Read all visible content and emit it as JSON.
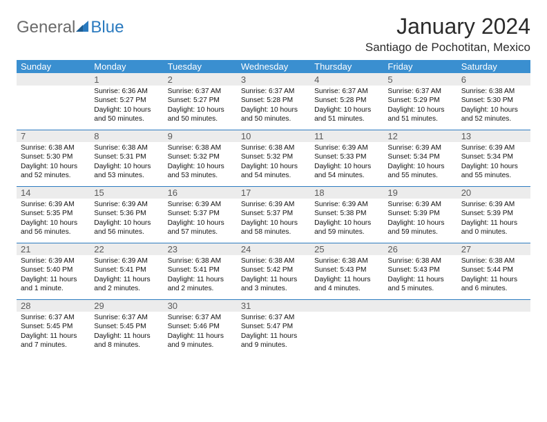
{
  "logo": {
    "general": "General",
    "blue": "Blue"
  },
  "header": {
    "month_title": "January 2024",
    "location": "Santiago de Pochotitan, Mexico"
  },
  "colors": {
    "header_bg": "#3a8fd0",
    "header_fg": "#ffffff",
    "numrow_bg": "#ececec",
    "numrow_fg": "#5a5a5a",
    "row_border": "#2a7abf",
    "logo_gray": "#6a6a6a",
    "logo_blue": "#2a7abf"
  },
  "calendar": {
    "day_names": [
      "Sunday",
      "Monday",
      "Tuesday",
      "Wednesday",
      "Thursday",
      "Friday",
      "Saturday"
    ],
    "weeks": [
      [
        null,
        {
          "n": "1",
          "sr": "6:36 AM",
          "ss": "5:27 PM",
          "dl": "10 hours and 50 minutes."
        },
        {
          "n": "2",
          "sr": "6:37 AM",
          "ss": "5:27 PM",
          "dl": "10 hours and 50 minutes."
        },
        {
          "n": "3",
          "sr": "6:37 AM",
          "ss": "5:28 PM",
          "dl": "10 hours and 50 minutes."
        },
        {
          "n": "4",
          "sr": "6:37 AM",
          "ss": "5:28 PM",
          "dl": "10 hours and 51 minutes."
        },
        {
          "n": "5",
          "sr": "6:37 AM",
          "ss": "5:29 PM",
          "dl": "10 hours and 51 minutes."
        },
        {
          "n": "6",
          "sr": "6:38 AM",
          "ss": "5:30 PM",
          "dl": "10 hours and 52 minutes."
        }
      ],
      [
        {
          "n": "7",
          "sr": "6:38 AM",
          "ss": "5:30 PM",
          "dl": "10 hours and 52 minutes."
        },
        {
          "n": "8",
          "sr": "6:38 AM",
          "ss": "5:31 PM",
          "dl": "10 hours and 53 minutes."
        },
        {
          "n": "9",
          "sr": "6:38 AM",
          "ss": "5:32 PM",
          "dl": "10 hours and 53 minutes."
        },
        {
          "n": "10",
          "sr": "6:38 AM",
          "ss": "5:32 PM",
          "dl": "10 hours and 54 minutes."
        },
        {
          "n": "11",
          "sr": "6:39 AM",
          "ss": "5:33 PM",
          "dl": "10 hours and 54 minutes."
        },
        {
          "n": "12",
          "sr": "6:39 AM",
          "ss": "5:34 PM",
          "dl": "10 hours and 55 minutes."
        },
        {
          "n": "13",
          "sr": "6:39 AM",
          "ss": "5:34 PM",
          "dl": "10 hours and 55 minutes."
        }
      ],
      [
        {
          "n": "14",
          "sr": "6:39 AM",
          "ss": "5:35 PM",
          "dl": "10 hours and 56 minutes."
        },
        {
          "n": "15",
          "sr": "6:39 AM",
          "ss": "5:36 PM",
          "dl": "10 hours and 56 minutes."
        },
        {
          "n": "16",
          "sr": "6:39 AM",
          "ss": "5:37 PM",
          "dl": "10 hours and 57 minutes."
        },
        {
          "n": "17",
          "sr": "6:39 AM",
          "ss": "5:37 PM",
          "dl": "10 hours and 58 minutes."
        },
        {
          "n": "18",
          "sr": "6:39 AM",
          "ss": "5:38 PM",
          "dl": "10 hours and 59 minutes."
        },
        {
          "n": "19",
          "sr": "6:39 AM",
          "ss": "5:39 PM",
          "dl": "10 hours and 59 minutes."
        },
        {
          "n": "20",
          "sr": "6:39 AM",
          "ss": "5:39 PM",
          "dl": "11 hours and 0 minutes."
        }
      ],
      [
        {
          "n": "21",
          "sr": "6:39 AM",
          "ss": "5:40 PM",
          "dl": "11 hours and 1 minute."
        },
        {
          "n": "22",
          "sr": "6:39 AM",
          "ss": "5:41 PM",
          "dl": "11 hours and 2 minutes."
        },
        {
          "n": "23",
          "sr": "6:38 AM",
          "ss": "5:41 PM",
          "dl": "11 hours and 2 minutes."
        },
        {
          "n": "24",
          "sr": "6:38 AM",
          "ss": "5:42 PM",
          "dl": "11 hours and 3 minutes."
        },
        {
          "n": "25",
          "sr": "6:38 AM",
          "ss": "5:43 PM",
          "dl": "11 hours and 4 minutes."
        },
        {
          "n": "26",
          "sr": "6:38 AM",
          "ss": "5:43 PM",
          "dl": "11 hours and 5 minutes."
        },
        {
          "n": "27",
          "sr": "6:38 AM",
          "ss": "5:44 PM",
          "dl": "11 hours and 6 minutes."
        }
      ],
      [
        {
          "n": "28",
          "sr": "6:37 AM",
          "ss": "5:45 PM",
          "dl": "11 hours and 7 minutes."
        },
        {
          "n": "29",
          "sr": "6:37 AM",
          "ss": "5:45 PM",
          "dl": "11 hours and 8 minutes."
        },
        {
          "n": "30",
          "sr": "6:37 AM",
          "ss": "5:46 PM",
          "dl": "11 hours and 9 minutes."
        },
        {
          "n": "31",
          "sr": "6:37 AM",
          "ss": "5:47 PM",
          "dl": "11 hours and 9 minutes."
        },
        null,
        null,
        null
      ]
    ]
  },
  "labels": {
    "sunrise": "Sunrise:",
    "sunset": "Sunset:",
    "daylight": "Daylight:"
  }
}
